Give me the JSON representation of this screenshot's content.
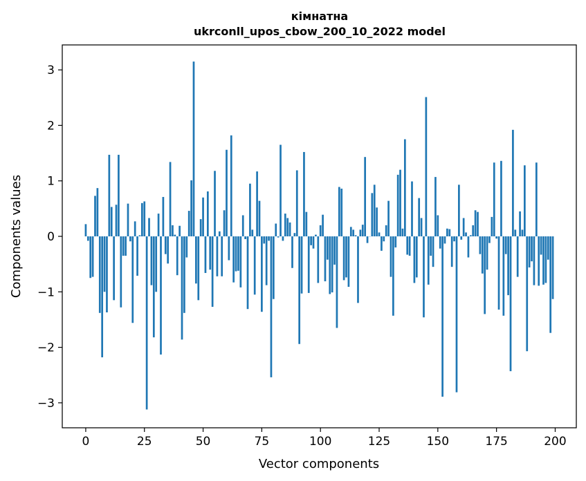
{
  "chart_data": {
    "type": "bar",
    "title_line1": "кімнатна",
    "title_line2": "ukrconll_upos_cbow_200_10_2022 model",
    "xlabel": "Vector components",
    "ylabel": "Components values",
    "xlim": [
      -10,
      209
    ],
    "ylim": [
      -3.45,
      3.45
    ],
    "xticks": [
      0,
      25,
      50,
      75,
      100,
      125,
      150,
      175,
      200
    ],
    "xtick_labels": [
      "0",
      "25",
      "50",
      "75",
      "100",
      "125",
      "150",
      "175",
      "200"
    ],
    "yticks": [
      3,
      2,
      1,
      0,
      -1,
      -2,
      -3
    ],
    "ytick_labels": [
      "3",
      "2",
      "1",
      "0",
      "−1",
      "−2",
      "−3"
    ],
    "grid": false,
    "bar_color": "#1f77b4",
    "series": [
      {
        "x": [
          0,
          1,
          2,
          3,
          4,
          5,
          6,
          7,
          8,
          9,
          10,
          11,
          12,
          13,
          14,
          15,
          16,
          17,
          18,
          19,
          20,
          21,
          22,
          23,
          24,
          25,
          26,
          27,
          28,
          29,
          30,
          31,
          32,
          33,
          34,
          35,
          36,
          37,
          38,
          39,
          40,
          41,
          42,
          43,
          44,
          45,
          46,
          47,
          48,
          49,
          50,
          51,
          52,
          53,
          54,
          55,
          56,
          57,
          58,
          59,
          60,
          61,
          62,
          63,
          64,
          65,
          66,
          67,
          68,
          69,
          70,
          71,
          72,
          73,
          74,
          75,
          76,
          77,
          78,
          79,
          80,
          81,
          82,
          83,
          84,
          85,
          86,
          87,
          88,
          89,
          90,
          91,
          92,
          93,
          94,
          95,
          96,
          97,
          98,
          99,
          100,
          101,
          102,
          103,
          104,
          105,
          106,
          107,
          108,
          109,
          110,
          111,
          112,
          113,
          114,
          115,
          116,
          117,
          118,
          119,
          120,
          121,
          122,
          123,
          124,
          125,
          126,
          127,
          128,
          129,
          130,
          131,
          132,
          133,
          134,
          135,
          136,
          137,
          138,
          139,
          140,
          141,
          142,
          143,
          144,
          145,
          146,
          147,
          148,
          149,
          150,
          151,
          152,
          153,
          154,
          155,
          156,
          157,
          158,
          159,
          160,
          161,
          162,
          163,
          164,
          165,
          166,
          167,
          168,
          169,
          170,
          171,
          172,
          173,
          174,
          175,
          176,
          177,
          178,
          179,
          180,
          181,
          182,
          183,
          184,
          185,
          186,
          187,
          188,
          189,
          190,
          191,
          192,
          193,
          194,
          195,
          196,
          197,
          198,
          199
        ],
        "values": [
          0.22,
          -0.08,
          -0.75,
          -0.73,
          0.73,
          0.87,
          -1.38,
          -2.18,
          -1.0,
          -1.37,
          1.47,
          0.53,
          -1.15,
          0.57,
          1.47,
          -1.28,
          -0.35,
          -0.35,
          0.59,
          -0.09,
          -1.56,
          0.27,
          -0.71,
          0.02,
          0.6,
          0.63,
          -3.12,
          0.33,
          -0.88,
          -1.82,
          -1.0,
          0.41,
          -2.13,
          0.71,
          -0.32,
          -0.49,
          1.34,
          0.2,
          0.03,
          -0.7,
          0.19,
          -1.86,
          -1.38,
          -0.38,
          0.46,
          1.01,
          3.15,
          -0.85,
          -1.15,
          0.31,
          0.7,
          -0.66,
          0.81,
          -0.6,
          -1.27,
          1.18,
          -0.72,
          0.09,
          -0.72,
          0.47,
          1.56,
          -0.43,
          1.82,
          -0.83,
          -0.63,
          -0.62,
          -0.92,
          0.38,
          -0.05,
          -1.31,
          0.95,
          0.12,
          -1.05,
          1.17,
          0.64,
          -1.36,
          -0.13,
          -0.88,
          -0.08,
          -2.54,
          -1.13,
          0.23,
          -0.02,
          1.65,
          -0.08,
          0.41,
          0.33,
          0.25,
          -0.57,
          0.06,
          1.19,
          -1.94,
          -1.03,
          1.52,
          0.44,
          -1.02,
          -0.16,
          -0.22,
          0.03,
          -0.84,
          0.2,
          0.39,
          -0.81,
          -0.42,
          -1.04,
          -1.01,
          -0.51,
          -1.65,
          0.89,
          0.86,
          -0.79,
          -0.74,
          -0.91,
          0.17,
          0.12,
          0.02,
          -1.2,
          0.12,
          0.21,
          1.43,
          -0.12,
          0.0,
          0.78,
          0.93,
          0.52,
          0.07,
          -0.26,
          -0.09,
          0.2,
          0.64,
          -0.73,
          -1.43,
          -0.2,
          1.11,
          1.2,
          0.14,
          1.75,
          -0.33,
          -0.35,
          0.99,
          -0.84,
          -0.74,
          0.69,
          0.33,
          -1.46,
          2.51,
          -0.87,
          -0.35,
          -0.55,
          1.07,
          0.38,
          -0.22,
          -2.89,
          -0.13,
          0.14,
          0.13,
          -0.55,
          -0.09,
          -2.81,
          0.93,
          -0.06,
          0.33,
          0.07,
          -0.38,
          0.02,
          0.2,
          0.47,
          0.44,
          -0.32,
          -0.67,
          -1.4,
          -0.6,
          -0.12,
          0.35,
          1.33,
          -0.04,
          -1.32,
          1.36,
          -1.43,
          -0.32,
          -1.06,
          -2.43,
          1.92,
          0.12,
          -0.73,
          0.45,
          0.12,
          1.28,
          -2.07,
          -0.56,
          -0.45,
          -0.88,
          1.33,
          -0.89,
          -0.33,
          -0.87,
          -0.84,
          -0.42,
          -1.74,
          -1.13
        ]
      }
    ]
  }
}
